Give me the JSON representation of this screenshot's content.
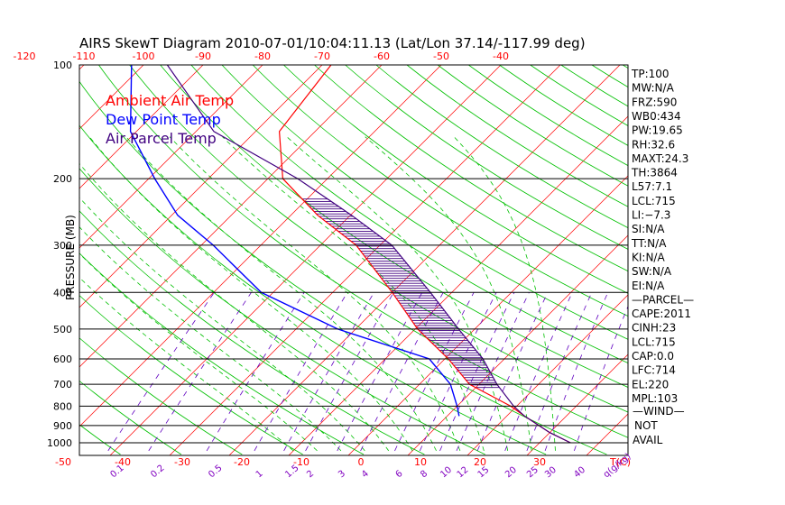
{
  "chart_data": {
    "type": "line",
    "title": "AIRS SkewT Diagram 2010-07-01/10:04:11.13 (Lat/Lon 37.14/-117.99 deg)",
    "ylabel": "PRESSURE (MB)",
    "xlabel_bottom_unit": "T(C)",
    "xlabel_mixing_unit": "q(g/kg)",
    "pressure_ticks": [
      "100",
      "200",
      "300",
      "400",
      "500",
      "600",
      "700",
      "800",
      "900",
      "1000"
    ],
    "bottom_temp_ticks": [
      "-50",
      "-40",
      "-30",
      "-20",
      "-10",
      "0",
      "10",
      "20",
      "30"
    ],
    "top_temp_ticks": [
      "-120",
      "-110",
      "-100",
      "-90",
      "-80",
      "-70",
      "-60",
      "-50",
      "-40"
    ],
    "mixing_ratio_ticks": [
      "0.1",
      "0.2",
      "0.5",
      "1",
      "1.5",
      "2",
      "3",
      "4",
      "6",
      "8",
      "10",
      "12",
      "15",
      "20",
      "25",
      "30",
      "40"
    ],
    "ylim": [
      100,
      1050
    ],
    "grid": true,
    "legend_placement": "top-left",
    "colors": {
      "ambient": "#ff0000",
      "dewpoint": "#0000ff",
      "parcel": "#400080",
      "isotherm": "#ff0000",
      "dry_adiabat": "#00c000",
      "moist_adiabat": "#00c000",
      "mixing_ratio": "#6000c0",
      "isobar": "#000000"
    },
    "series": [
      {
        "name": "Ambient Air Temp",
        "pressure": [
          1000,
          940,
          850,
          800,
          700,
          600,
          500,
          400,
          300,
          250,
          200,
          150,
          100
        ],
        "temp": [
          35.2,
          30,
          23,
          19,
          8.4,
          0.6,
          -9.6,
          -20,
          -34,
          -45.5,
          -57.5,
          -66,
          -68.5
        ]
      },
      {
        "name": "Dew Point Temp",
        "pressure": [
          850,
          800,
          700,
          600,
          500,
          400,
          300,
          250,
          200,
          150,
          100
        ],
        "temp": [
          12,
          10,
          5.2,
          -2.6,
          -23,
          -42,
          -58,
          -69,
          -79,
          -91,
          -102
        ]
      },
      {
        "name": "Air Parcel Temp",
        "pressure": [
          1000,
          940,
          850,
          800,
          700,
          600,
          500,
          400,
          300,
          250,
          200,
          150,
          100
        ],
        "temp": [
          35.2,
          30,
          23,
          19.5,
          13,
          6.4,
          -2.7,
          -13.6,
          -28,
          -39.8,
          -55,
          -77,
          -96
        ]
      }
    ],
    "wind_label": "—WIND—",
    "wind_text": [
      "NOT",
      "AVAIL"
    ]
  },
  "indices": [
    "TP:100",
    "MW:N/A",
    "FRZ:590",
    "WB0:434",
    "PW:19.65",
    "RH:32.6",
    "MAXT:24.3",
    "TH:3864",
    "L57:7.1",
    "LCL:715",
    "LI:−7.3",
    "SI:N/A",
    "TT:N/A",
    "KI:N/A",
    "SW:N/A",
    "EI:N/A",
    "—PARCEL—",
    "CAPE:2011",
    "CINH:23",
    "LCL:715",
    "CAP:0.0",
    "LFC:714",
    "EL:220",
    "MPL:103"
  ]
}
